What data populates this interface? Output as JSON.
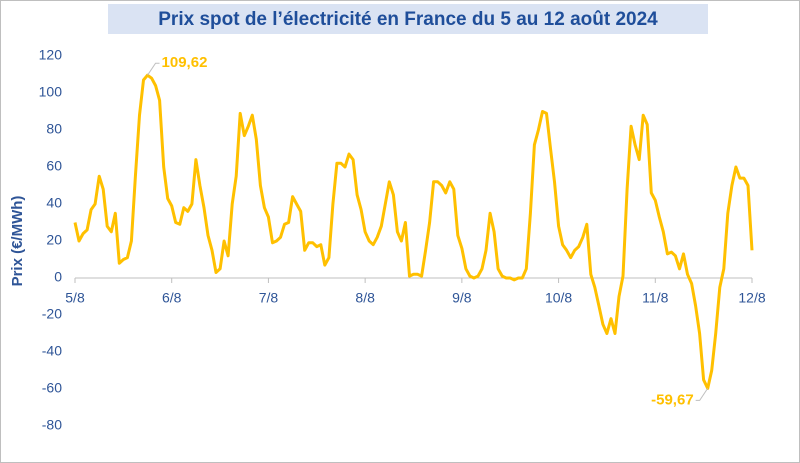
{
  "chart_data": {
    "type": "line",
    "title": "Prix spot de l’électricité en France du 5 au 12 août 2024",
    "y_label": "Prix (€/MWh)",
    "color": "#ffc000",
    "xlim": [
      0,
      168
    ],
    "xticks": [
      {
        "value": 0,
        "label": "5/8"
      },
      {
        "value": 24,
        "label": "6/8"
      },
      {
        "value": 48,
        "label": "7/8"
      },
      {
        "value": 72,
        "label": "8/8"
      },
      {
        "value": 96,
        "label": "9/8"
      },
      {
        "value": 120,
        "label": "10/8"
      },
      {
        "value": 144,
        "label": "11/8"
      },
      {
        "value": 168,
        "label": "12/8"
      }
    ],
    "ylim": [
      -80,
      120
    ],
    "yticks": [
      -80,
      -60,
      -40,
      -20,
      0,
      20,
      40,
      60,
      80,
      100,
      120
    ],
    "grid": false,
    "x": [
      0,
      1,
      2,
      3,
      4,
      5,
      6,
      7,
      8,
      9,
      10,
      11,
      12,
      13,
      14,
      15,
      16,
      17,
      18,
      19,
      20,
      21,
      22,
      23,
      24,
      25,
      26,
      27,
      28,
      29,
      30,
      31,
      32,
      33,
      34,
      35,
      36,
      37,
      38,
      39,
      40,
      41,
      42,
      43,
      44,
      45,
      46,
      47,
      48,
      49,
      50,
      51,
      52,
      53,
      54,
      55,
      56,
      57,
      58,
      59,
      60,
      61,
      62,
      63,
      64,
      65,
      66,
      67,
      68,
      69,
      70,
      71,
      72,
      73,
      74,
      75,
      76,
      77,
      78,
      79,
      80,
      81,
      82,
      83,
      84,
      85,
      86,
      87,
      88,
      89,
      90,
      91,
      92,
      93,
      94,
      95,
      96,
      97,
      98,
      99,
      100,
      101,
      102,
      103,
      104,
      105,
      106,
      107,
      108,
      109,
      110,
      111,
      112,
      113,
      114,
      115,
      116,
      117,
      118,
      119,
      120,
      121,
      122,
      123,
      124,
      125,
      126,
      127,
      128,
      129,
      130,
      131,
      132,
      133,
      134,
      135,
      136,
      137,
      138,
      139,
      140,
      141,
      142,
      143,
      144,
      145,
      146,
      147,
      148,
      149,
      150,
      151,
      152,
      153,
      154,
      155,
      156,
      157,
      158,
      159,
      160,
      161,
      162,
      163,
      164,
      165,
      166,
      167,
      168
    ],
    "values": [
      30,
      20,
      24,
      26,
      37,
      40,
      55,
      48,
      28,
      25,
      35,
      8,
      10,
      11,
      20,
      55,
      88,
      107,
      109.62,
      108,
      104,
      96,
      60,
      43,
      39,
      30,
      29,
      38,
      36,
      40,
      64,
      50,
      38,
      23,
      15,
      3,
      5,
      20,
      12,
      40,
      55,
      89,
      77,
      82,
      88,
      75,
      50,
      38,
      33,
      19,
      20,
      22,
      29,
      30,
      44,
      40,
      36,
      15,
      19,
      19,
      17,
      18,
      7,
      11,
      40,
      62,
      62,
      60,
      67,
      64,
      45,
      37,
      25,
      20,
      18,
      22,
      28,
      40,
      52,
      45,
      25,
      20,
      30,
      1,
      2,
      2,
      1,
      15,
      30,
      52,
      52,
      50,
      46,
      52,
      48,
      23,
      16,
      5,
      1,
      0,
      1,
      5,
      15,
      35,
      25,
      5,
      1,
      0,
      0,
      -1,
      0,
      0,
      5,
      35,
      72,
      80,
      90,
      89,
      70,
      52,
      28,
      18,
      15,
      11,
      15,
      17,
      22,
      29,
      2,
      -5,
      -15,
      -25,
      -30,
      -22,
      -30,
      -10,
      1,
      48,
      82,
      72,
      64,
      88,
      83,
      46,
      42,
      33,
      25,
      13,
      14,
      12,
      5,
      13,
      2,
      -3,
      -15,
      -30,
      -55,
      -59.67,
      -50,
      -30,
      -5,
      5,
      35,
      50,
      60,
      54,
      54,
      50,
      15
    ],
    "annotations": [
      {
        "text": "109,62",
        "x": 18,
        "y": 109.62,
        "side": "right"
      },
      {
        "text": "-59,67",
        "x": 157,
        "y": -59.67,
        "side": "left"
      }
    ]
  }
}
